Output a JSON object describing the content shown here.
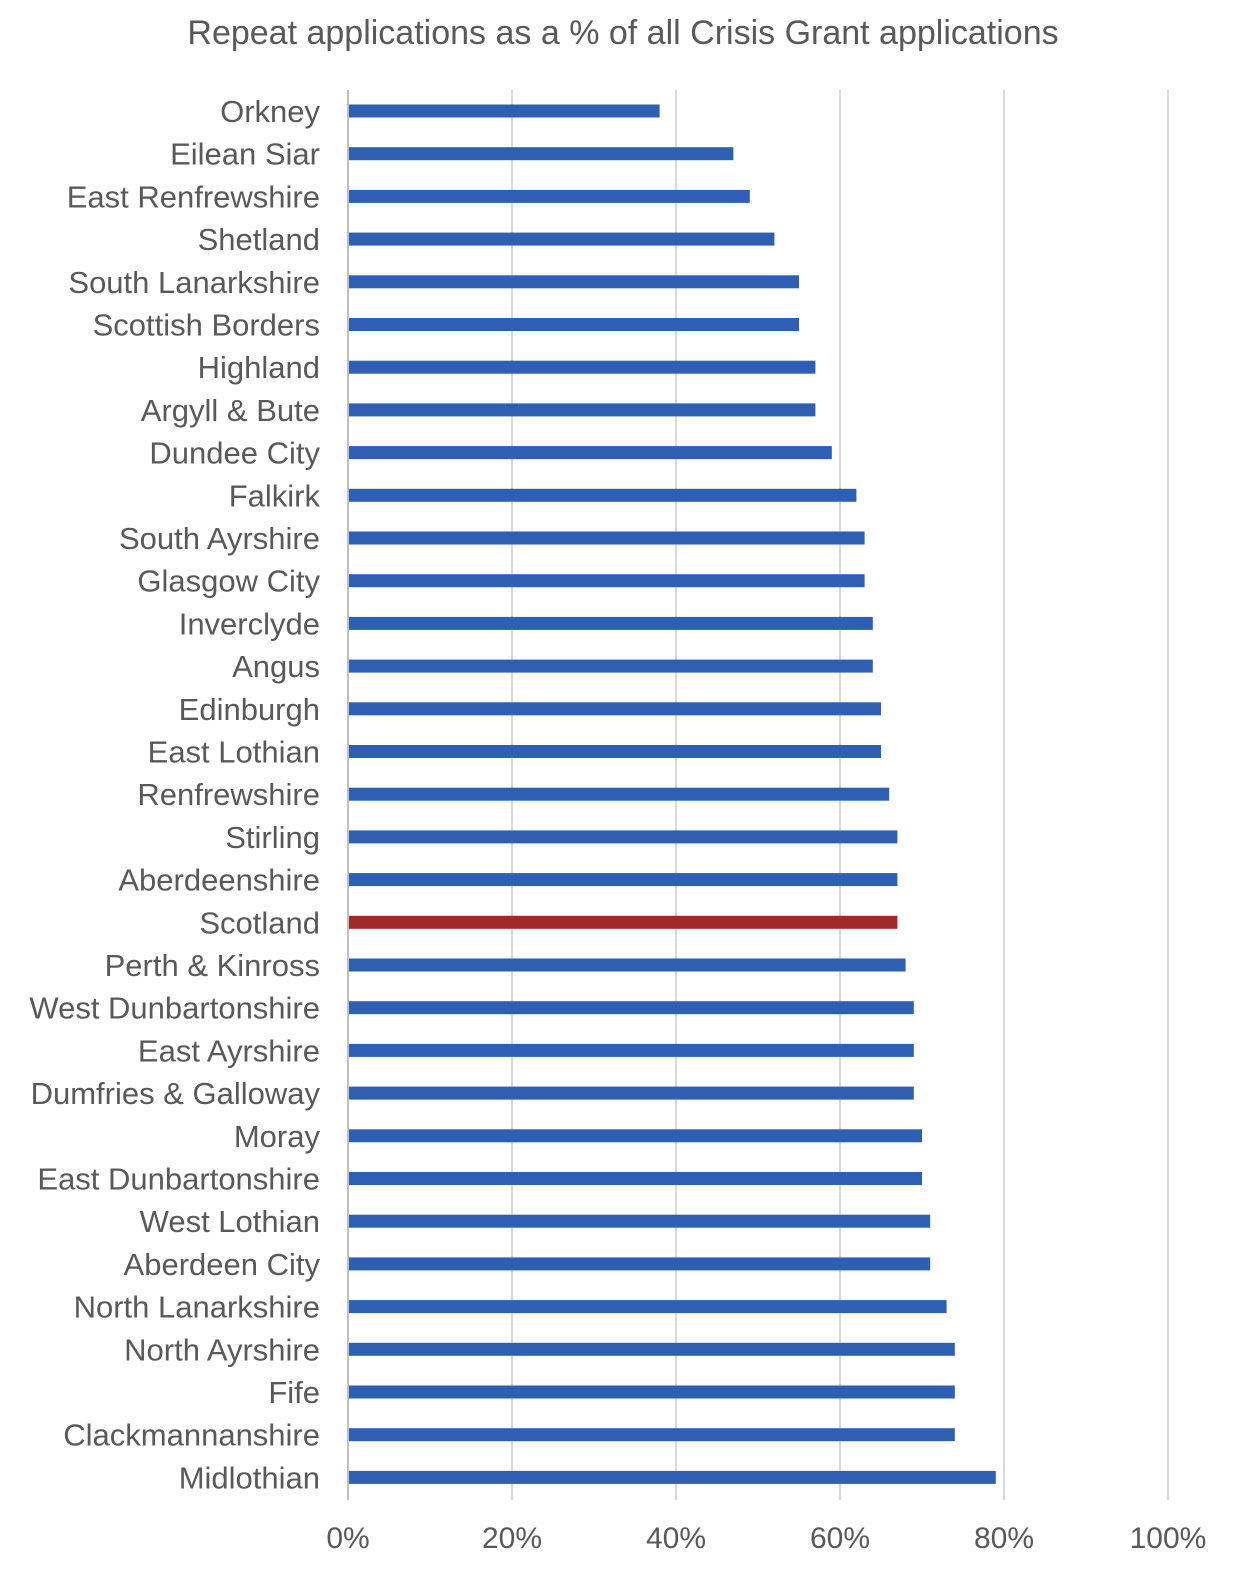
{
  "chart_data": {
    "type": "bar",
    "orientation": "horizontal",
    "title": "Repeat applications as a % of all Crisis Grant applications",
    "xlabel": "",
    "ylabel": "",
    "xlim": [
      0,
      100
    ],
    "x_ticks": [
      "0%",
      "20%",
      "40%",
      "60%",
      "80%",
      "100%"
    ],
    "x_tick_values": [
      0,
      20,
      40,
      60,
      80,
      100
    ],
    "grid": "vertical",
    "legend": "none",
    "categories": [
      "Orkney",
      "Eilean Siar",
      "East Renfrewshire",
      "Shetland",
      "South Lanarkshire",
      "Scottish Borders",
      "Highland",
      "Argyll & Bute",
      "Dundee City",
      "Falkirk",
      "South Ayrshire",
      "Glasgow City",
      "Inverclyde",
      "Angus",
      "Edinburgh",
      "East Lothian",
      "Renfrewshire",
      "Stirling",
      "Aberdeenshire",
      "Scotland",
      "Perth & Kinross",
      "West Dunbartonshire",
      "East Ayrshire",
      "Dumfries & Galloway",
      "Moray",
      "East Dunbartonshire",
      "West Lothian",
      "Aberdeen City",
      "North Lanarkshire",
      "North Ayrshire",
      "Fife",
      "Clackmannanshire",
      "Midlothian"
    ],
    "values": [
      38,
      47,
      49,
      52,
      55,
      55,
      57,
      57,
      59,
      62,
      63,
      63,
      64,
      64,
      65,
      65,
      66,
      67,
      67,
      67,
      68,
      69,
      69,
      69,
      70,
      70,
      71,
      71,
      73,
      74,
      74,
      74,
      79
    ],
    "highlight_category": "Scotland",
    "colors": {
      "bar": "#2e5fb3",
      "highlight": "#a0292a",
      "grid": "#d9d9d9",
      "axis": "#bfbfbf",
      "text": "#595959"
    }
  }
}
